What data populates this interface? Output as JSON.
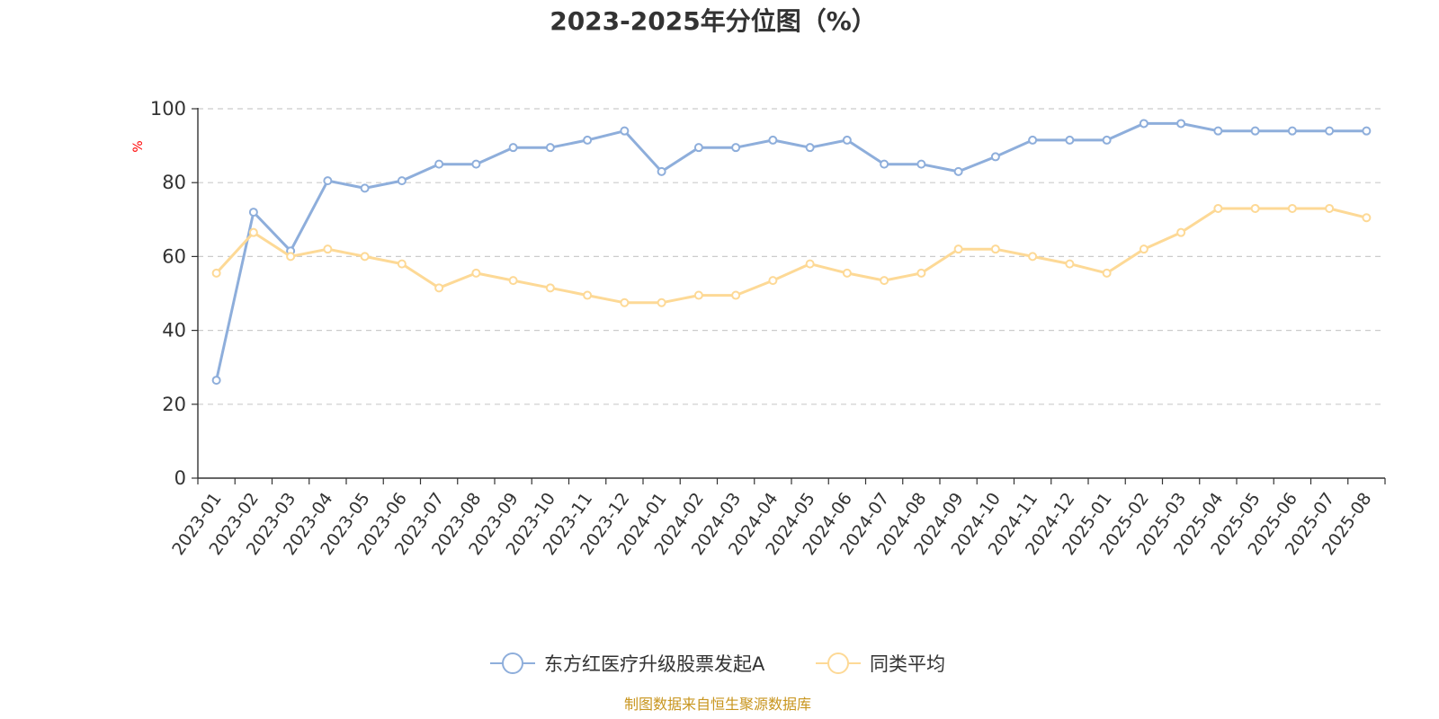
{
  "chart_data": {
    "type": "line",
    "title": "2023-2025年分位图（%）",
    "ylabel": "%",
    "xlabel": "",
    "ylim": [
      0,
      100
    ],
    "yticks": [
      0,
      20,
      40,
      60,
      80,
      100
    ],
    "grid": true,
    "legend_position": "bottom",
    "categories": [
      "2023-01",
      "2023-02",
      "2023-03",
      "2023-04",
      "2023-05",
      "2023-06",
      "2023-07",
      "2023-08",
      "2023-09",
      "2023-10",
      "2023-11",
      "2023-12",
      "2024-01",
      "2024-02",
      "2024-03",
      "2024-04",
      "2024-05",
      "2024-06",
      "2024-07",
      "2024-08",
      "2024-09",
      "2024-10",
      "2024-11",
      "2024-12",
      "2025-01",
      "2025-02",
      "2025-03",
      "2025-04",
      "2025-05",
      "2025-06",
      "2025-07",
      "2025-08"
    ],
    "series": [
      {
        "name": "东方红医疗升级股票发起A",
        "color": "#8eaedb",
        "values": [
          26.5,
          72,
          61.5,
          80.5,
          78.5,
          80.5,
          85,
          85,
          89.5,
          89.5,
          91.5,
          94,
          83,
          89.5,
          89.5,
          91.5,
          89.5,
          91.5,
          85,
          85,
          83,
          87,
          91.5,
          91.5,
          91.5,
          96,
          96,
          94,
          94,
          94,
          94,
          94
        ]
      },
      {
        "name": "同类平均",
        "color": "#fdd996",
        "values": [
          55.5,
          66.5,
          60,
          62,
          60,
          58,
          51.5,
          55.5,
          53.5,
          51.5,
          49.5,
          47.5,
          47.5,
          49.5,
          49.5,
          53.5,
          58,
          55.5,
          53.5,
          55.5,
          62,
          62,
          60,
          58,
          55.5,
          62,
          66.5,
          73,
          73,
          73,
          73,
          70.5
        ]
      }
    ]
  },
  "source_note": "制图数据来自恒生聚源数据库"
}
